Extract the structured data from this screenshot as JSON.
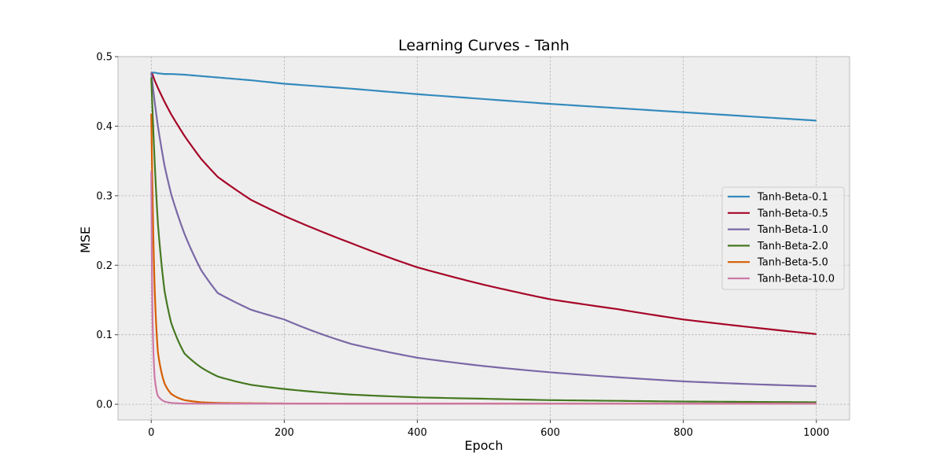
{
  "chart_data": {
    "type": "line",
    "title": "Learning Curves - Tanh",
    "xlabel": "Epoch",
    "ylabel": "MSE",
    "xlim": [
      -50,
      1050
    ],
    "ylim": [
      -0.0225,
      0.5
    ],
    "xticks": [
      0,
      200,
      400,
      600,
      800,
      1000
    ],
    "yticks": [
      0.0,
      0.1,
      0.2,
      0.3,
      0.4,
      0.5
    ],
    "xtick_labels": [
      "0",
      "200",
      "400",
      "600",
      "800",
      "1000"
    ],
    "ytick_labels": [
      "0.0",
      "0.1",
      "0.2",
      "0.3",
      "0.4",
      "0.5"
    ],
    "grid": true,
    "legend_position": "center-right",
    "x": [
      0,
      2,
      5,
      10,
      20,
      30,
      50,
      75,
      100,
      150,
      200,
      300,
      400,
      500,
      600,
      700,
      800,
      900,
      1000
    ],
    "series": [
      {
        "name": "Tanh-Beta-0.1",
        "color": "#348abd",
        "values": [
          0.477,
          0.477,
          0.477,
          0.476,
          0.475,
          0.475,
          0.474,
          0.472,
          0.47,
          0.466,
          0.461,
          0.454,
          0.446,
          0.439,
          0.432,
          0.426,
          0.42,
          0.414,
          0.408
        ]
      },
      {
        "name": "Tanh-Beta-0.5",
        "color": "#a60628",
        "values": [
          0.477,
          0.474,
          0.466,
          0.455,
          0.435,
          0.417,
          0.386,
          0.353,
          0.327,
          0.294,
          0.271,
          0.232,
          0.197,
          0.172,
          0.151,
          0.137,
          0.122,
          0.111,
          0.101
        ]
      },
      {
        "name": "Tanh-Beta-1.0",
        "color": "#7a68a6",
        "values": [
          0.477,
          0.46,
          0.436,
          0.4,
          0.343,
          0.302,
          0.245,
          0.193,
          0.16,
          0.136,
          0.122,
          0.087,
          0.067,
          0.055,
          0.046,
          0.039,
          0.033,
          0.029,
          0.026
        ]
      },
      {
        "name": "Tanh-Beta-2.0",
        "color": "#467821",
        "values": [
          0.47,
          0.42,
          0.352,
          0.26,
          0.163,
          0.117,
          0.073,
          0.053,
          0.04,
          0.028,
          0.022,
          0.014,
          0.01,
          0.008,
          0.006,
          0.005,
          0.004,
          0.0035,
          0.003
        ]
      },
      {
        "name": "Tanh-Beta-5.0",
        "color": "#d55e00",
        "values": [
          0.418,
          0.3,
          0.17,
          0.075,
          0.03,
          0.015,
          0.006,
          0.003,
          0.002,
          0.0015,
          0.0012,
          0.001,
          0.001,
          0.001,
          0.001,
          0.001,
          0.001,
          0.001,
          0.001
        ]
      },
      {
        "name": "Tanh-Beta-10.0",
        "color": "#cc79a7",
        "values": [
          0.335,
          0.12,
          0.04,
          0.012,
          0.004,
          0.002,
          0.001,
          0.001,
          0.001,
          0.001,
          0.001,
          0.001,
          0.001,
          0.001,
          0.001,
          0.001,
          0.001,
          0.001,
          0.001
        ]
      }
    ]
  }
}
